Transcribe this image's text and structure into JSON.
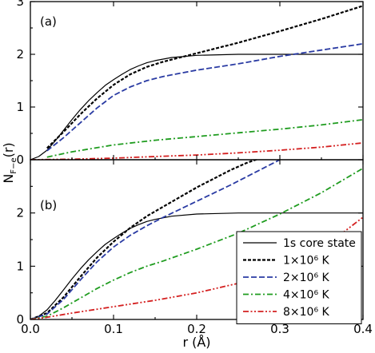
{
  "chart_data": [
    {
      "type": "line",
      "panel_label": "(a)",
      "xlim": [
        0.0,
        0.4
      ],
      "ylim": [
        0,
        3
      ],
      "x_ticks": [
        "0.0",
        "0.1",
        "0.2",
        "0.3",
        "0.4"
      ],
      "y_ticks": [
        "0",
        "1",
        "2",
        "3"
      ],
      "xlabel": "r (Å)",
      "ylabel": "N_F−e(r)",
      "series": [
        {
          "name": "1s core state",
          "color": "#000000",
          "style": "solid",
          "x": [
            0.0,
            0.01,
            0.02,
            0.03,
            0.04,
            0.05,
            0.06,
            0.07,
            0.08,
            0.09,
            0.1,
            0.11,
            0.12,
            0.13,
            0.14,
            0.15,
            0.17,
            0.2,
            0.25,
            0.3,
            0.35,
            0.4
          ],
          "y": [
            0.0,
            0.06,
            0.18,
            0.36,
            0.56,
            0.76,
            0.95,
            1.12,
            1.27,
            1.41,
            1.52,
            1.62,
            1.71,
            1.78,
            1.84,
            1.88,
            1.94,
            1.98,
            2.0,
            2.0,
            2.0,
            2.0
          ]
        },
        {
          "name": "1×10⁶ K",
          "color": "#000000",
          "style": "dotted",
          "x": [
            0.02,
            0.04,
            0.06,
            0.08,
            0.1,
            0.12,
            0.14,
            0.16,
            0.2,
            0.25,
            0.3,
            0.35,
            0.4
          ],
          "y": [
            0.22,
            0.53,
            0.86,
            1.16,
            1.42,
            1.62,
            1.76,
            1.86,
            2.02,
            2.22,
            2.44,
            2.67,
            2.92
          ]
        },
        {
          "name": "2×10⁶ K",
          "color": "#2a3ba3",
          "style": "dashed",
          "x": [
            0.02,
            0.04,
            0.06,
            0.08,
            0.1,
            0.12,
            0.14,
            0.16,
            0.2,
            0.25,
            0.3,
            0.35,
            0.4
          ],
          "y": [
            0.17,
            0.42,
            0.7,
            0.98,
            1.22,
            1.38,
            1.5,
            1.58,
            1.7,
            1.82,
            1.96,
            2.08,
            2.2
          ]
        },
        {
          "name": "4×10⁶ K",
          "color": "#1f9c1f",
          "style": "dashdot",
          "x": [
            0.02,
            0.05,
            0.1,
            0.15,
            0.2,
            0.25,
            0.3,
            0.35,
            0.4
          ],
          "y": [
            0.05,
            0.15,
            0.28,
            0.37,
            0.44,
            0.51,
            0.58,
            0.66,
            0.76
          ]
        },
        {
          "name": "8×10⁶ K",
          "color": "#d42020",
          "style": "dashdotdot",
          "x": [
            0.0,
            0.05,
            0.1,
            0.15,
            0.2,
            0.25,
            0.3,
            0.35,
            0.4
          ],
          "y": [
            0.0,
            0.01,
            0.03,
            0.06,
            0.09,
            0.13,
            0.18,
            0.24,
            0.32
          ]
        }
      ]
    },
    {
      "type": "line",
      "panel_label": "(b)",
      "xlim": [
        0.0,
        0.4
      ],
      "ylim": [
        0,
        3
      ],
      "x_ticks": [
        "0.0",
        "0.1",
        "0.2",
        "0.3",
        "0.4"
      ],
      "y_ticks": [
        "0",
        "1",
        "2"
      ],
      "xlabel": "r (Å)",
      "ylabel": "N_F−e(r)",
      "legend_position": "bottom-right",
      "series": [
        {
          "name": "1s core state",
          "color": "#000000",
          "style": "solid",
          "x": [
            0.0,
            0.01,
            0.02,
            0.03,
            0.04,
            0.05,
            0.06,
            0.07,
            0.08,
            0.09,
            0.1,
            0.11,
            0.12,
            0.13,
            0.14,
            0.15,
            0.17,
            0.2,
            0.25,
            0.3,
            0.35,
            0.4
          ],
          "y": [
            0.0,
            0.06,
            0.18,
            0.36,
            0.56,
            0.76,
            0.95,
            1.12,
            1.27,
            1.41,
            1.52,
            1.62,
            1.71,
            1.78,
            1.84,
            1.88,
            1.94,
            1.98,
            2.0,
            2.0,
            2.0,
            2.0
          ]
        },
        {
          "name": "1×10⁶ K",
          "color": "#000000",
          "style": "dotted",
          "x": [
            0.0,
            0.02,
            0.04,
            0.06,
            0.08,
            0.1,
            0.12,
            0.14,
            0.16,
            0.18,
            0.2,
            0.22,
            0.24,
            0.26,
            0.28
          ],
          "y": [
            0.0,
            0.12,
            0.42,
            0.8,
            1.16,
            1.46,
            1.72,
            1.94,
            2.12,
            2.3,
            2.48,
            2.64,
            2.8,
            2.94,
            3.05
          ]
        },
        {
          "name": "2×10⁶ K",
          "color": "#2a3ba3",
          "style": "dashed",
          "x": [
            0.0,
            0.02,
            0.04,
            0.06,
            0.08,
            0.1,
            0.12,
            0.14,
            0.16,
            0.2,
            0.24,
            0.28,
            0.3
          ],
          "y": [
            0.0,
            0.1,
            0.38,
            0.74,
            1.08,
            1.36,
            1.58,
            1.76,
            1.92,
            2.22,
            2.52,
            2.84,
            3.0
          ]
        },
        {
          "name": "4×10⁶ K",
          "color": "#1f9c1f",
          "style": "dashdot",
          "x": [
            0.0,
            0.02,
            0.04,
            0.06,
            0.08,
            0.1,
            0.12,
            0.14,
            0.16,
            0.2,
            0.25,
            0.3,
            0.35,
            0.4
          ],
          "y": [
            0.0,
            0.06,
            0.22,
            0.4,
            0.58,
            0.74,
            0.88,
            1.0,
            1.1,
            1.32,
            1.62,
            1.98,
            2.38,
            2.84
          ]
        },
        {
          "name": "8×10⁶ K",
          "color": "#d42020",
          "style": "dashdotdot",
          "x": [
            0.0,
            0.02,
            0.05,
            0.1,
            0.15,
            0.2,
            0.25,
            0.3,
            0.35,
            0.4
          ],
          "y": [
            0.0,
            0.04,
            0.12,
            0.24,
            0.36,
            0.5,
            0.68,
            0.92,
            1.32,
            1.92
          ]
        }
      ]
    }
  ]
}
